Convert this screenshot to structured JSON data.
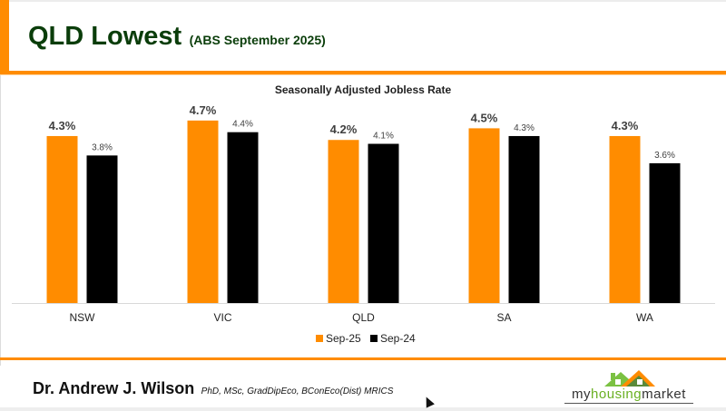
{
  "header": {
    "title": "QLD Lowest",
    "subtitle": "(ABS September 2025)",
    "accent_color": "#ff8c00",
    "title_color": "#0a3d0a"
  },
  "footer": {
    "author_name": "Dr. Andrew J. Wilson",
    "author_credentials": "PhD, MSc, GradDipEco, BConEco(Dist) MRICS",
    "logo": {
      "text_part1": "my",
      "text_part2": "housing",
      "text_part3": "market",
      "icon": "house-roofs-icon"
    }
  },
  "chart_data": {
    "type": "bar",
    "title": "Seasonally Adjusted Jobless Rate",
    "xlabel": "",
    "ylabel": "",
    "ylim": [
      0,
      4.7
    ],
    "grid": false,
    "legend_position": "bottom",
    "categories": [
      "NSW",
      "VIC",
      "QLD",
      "SA",
      "WA"
    ],
    "series": [
      {
        "name": "Sep-25",
        "color": "#ff8c00",
        "values": [
          4.3,
          4.7,
          4.2,
          4.5,
          4.3
        ],
        "labels": [
          "4.3%",
          "4.7%",
          "4.2%",
          "4.5%",
          "4.3%"
        ]
      },
      {
        "name": "Sep-24",
        "color": "#000000",
        "values": [
          3.8,
          4.4,
          4.1,
          4.3,
          3.6
        ],
        "labels": [
          "3.8%",
          "4.4%",
          "4.1%",
          "4.3%",
          "3.6%"
        ]
      }
    ]
  }
}
